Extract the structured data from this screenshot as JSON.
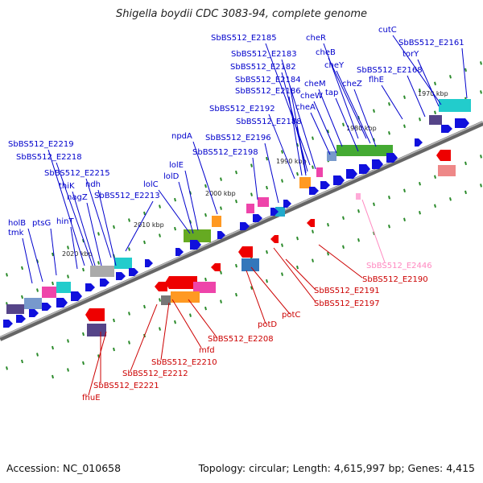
{
  "title": "Shigella boydii CDC 3083-94, complete genome",
  "footer": {
    "accession": "Accession: NC_010658",
    "summary": "Topology: circular; Length: 4,615,997 bp; Genes: 4,415"
  },
  "colors": {
    "forward_label": "#0000cc",
    "reverse_label": "#cc0000",
    "pseudo_label": "#ff88c0",
    "backbone": "#888888",
    "tick": "#2a8a2a"
  },
  "scale_labels": [
    "1970 kbp",
    "1980 kbp",
    "1990 kbp",
    "2000 kbp",
    "2010 kbp",
    "2020 kbp"
  ],
  "forward_gene_labels": [
    "cutC",
    "SbBS512_E2161",
    "torY",
    "cheR",
    "SbBS512_E2185",
    "cheB",
    "SbBS512_E2183",
    "cheY",
    "SbBS512_E2182",
    "SbBS512_E2168",
    "SbBS512_E2184",
    "cheZ",
    "flhE",
    "cheM",
    "tap",
    "SbBS512_E2186",
    "cheW",
    "cheA",
    "SbBS512_E2192",
    "SbBS512_E2188",
    "npdA",
    "SbBS512_E2196",
    "SbBS512_E2198",
    "SbBS512_E2219",
    "SbBS512_E2218",
    "lolE",
    "SbBS512_E2215",
    "lolD",
    "thiK",
    "ndh",
    "lolC",
    "nagZ",
    "SbBS512_E2213",
    "holB",
    "ptsG",
    "hinT",
    "tmk"
  ],
  "reverse_gene_labels": [
    "SbBS512_E2190",
    "SbBS512_E2191",
    "SbBS512_E2197",
    "potC",
    "potD",
    "SbBS512_E2208",
    "mfd",
    "SbBS512_E2210",
    "SbBS512_E2212",
    "SbBS512_E2221",
    "fhuE"
  ],
  "pseudo_gene_labels": [
    "SbBS512_E2446"
  ]
}
